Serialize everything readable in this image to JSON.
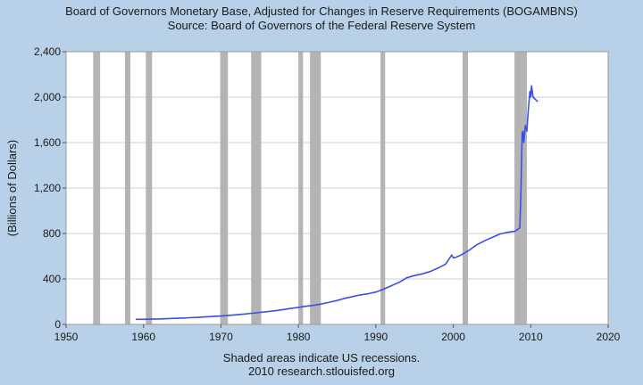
{
  "header": {
    "title": "Board of Governors Monetary Base, Adjusted for Changes in Reserve Requirements (BOGAMBNS)",
    "subtitle": "Source: Board of Governors of the Federal Reserve System"
  },
  "footer": {
    "note": "Shaded areas indicate US recessions.",
    "credit": "2010 research.stlouisfed.org"
  },
  "colors": {
    "page_background": "#b8d0e8",
    "plot_background": "#ffffff",
    "line": "#3b4fe8",
    "recession": "#b4b4b4",
    "grid": "#cfcfcf"
  },
  "chart_data": {
    "type": "line",
    "title": "Board of Governors Monetary Base, Adjusted for Changes in Reserve Requirements (BOGAMBNS)",
    "xlabel": "",
    "ylabel": "(Billions of Dollars)",
    "xlim": [
      1950,
      2020
    ],
    "ylim": [
      0,
      2400
    ],
    "x_ticks": [
      1950,
      1960,
      1970,
      1980,
      1990,
      2000,
      2010,
      2020
    ],
    "x_tick_labels": [
      "1950",
      "1960",
      "1970",
      "1980",
      "1990",
      "2000",
      "2010",
      "2020"
    ],
    "y_ticks": [
      0,
      400,
      800,
      1200,
      1600,
      2000,
      2400
    ],
    "y_tick_labels": [
      "0",
      "400",
      "800",
      "1,200",
      "1,600",
      "2,000",
      "2,400"
    ],
    "grid": "horizontal",
    "recessions": [
      [
        1953.5,
        1954.4
      ],
      [
        1957.6,
        1958.3
      ],
      [
        1960.3,
        1961.1
      ],
      [
        1969.9,
        1970.9
      ],
      [
        1973.9,
        1975.2
      ],
      [
        1980.0,
        1980.6
      ],
      [
        1981.5,
        1982.9
      ],
      [
        1990.6,
        1991.2
      ],
      [
        2001.2,
        2001.9
      ],
      [
        2007.9,
        2009.5
      ]
    ],
    "series": [
      {
        "x": [
          1959.0,
          1960.0,
          1961.0,
          1962.0,
          1963.0,
          1964.0,
          1965.0,
          1966.0,
          1967.0,
          1968.0,
          1969.0,
          1970.0,
          1971.0,
          1972.0,
          1973.0,
          1974.0,
          1975.0,
          1976.0,
          1977.0,
          1978.0,
          1979.0,
          1980.0,
          1981.0,
          1982.0,
          1983.0,
          1984.0,
          1985.0,
          1986.0,
          1987.0,
          1988.0,
          1989.0,
          1990.0,
          1991.0,
          1992.0,
          1993.0,
          1994.0,
          1995.0,
          1996.0,
          1997.0,
          1998.0,
          1999.0,
          1999.8,
          2000.0,
          2000.3,
          2001.0,
          2002.0,
          2003.0,
          2004.0,
          2005.0,
          2006.0,
          2007.0,
          2008.0,
          2008.6,
          2008.75,
          2008.9,
          2009.0,
          2009.1,
          2009.3,
          2009.5,
          2009.7,
          2009.9,
          2010.0,
          2010.1,
          2010.3,
          2010.6,
          2010.9
        ],
        "values": [
          45,
          45,
          46,
          48,
          50,
          53,
          56,
          59,
          62,
          66,
          70,
          74,
          79,
          85,
          91,
          98,
          105,
          112,
          120,
          130,
          140,
          150,
          160,
          168,
          180,
          195,
          210,
          230,
          245,
          260,
          270,
          285,
          310,
          340,
          370,
          410,
          430,
          445,
          465,
          495,
          530,
          610,
          585,
          590,
          610,
          650,
          700,
          735,
          765,
          795,
          810,
          820,
          850,
          1200,
          1680,
          1700,
          1600,
          1750,
          1700,
          1900,
          2050,
          2000,
          2100,
          2000,
          1980,
          1960
        ]
      }
    ]
  }
}
